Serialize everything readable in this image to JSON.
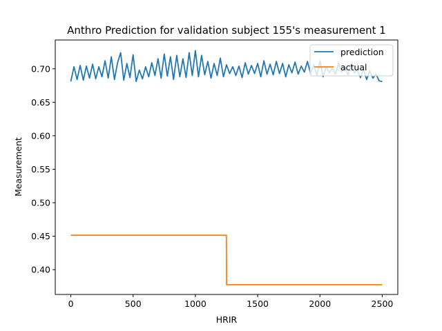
{
  "chart_data": {
    "type": "line",
    "title": "Anthro Prediction for validation subject 155's measurement 1",
    "xlabel": "HRIR",
    "ylabel": "Measurement",
    "xlim": [
      -125,
      2625
    ],
    "ylim": [
      0.363,
      0.743
    ],
    "xticks": [
      0,
      500,
      1000,
      1500,
      2000,
      2500
    ],
    "yticks": [
      0.4,
      0.45,
      0.5,
      0.55,
      0.6,
      0.65,
      0.7
    ],
    "grid": false,
    "legend_position": "top-right",
    "series": [
      {
        "name": "prediction",
        "color": "#1f77b4",
        "x": [
          0,
          25,
          50,
          75,
          100,
          125,
          150,
          175,
          200,
          225,
          250,
          275,
          300,
          325,
          350,
          375,
          400,
          425,
          450,
          475,
          500,
          525,
          550,
          575,
          600,
          625,
          650,
          675,
          700,
          725,
          750,
          775,
          800,
          825,
          850,
          875,
          900,
          925,
          950,
          975,
          1000,
          1025,
          1050,
          1075,
          1100,
          1125,
          1150,
          1175,
          1200,
          1225,
          1250,
          1275,
          1300,
          1325,
          1350,
          1375,
          1400,
          1425,
          1450,
          1475,
          1500,
          1525,
          1550,
          1575,
          1600,
          1625,
          1650,
          1675,
          1700,
          1725,
          1750,
          1775,
          1800,
          1825,
          1850,
          1875,
          1900,
          1925,
          1950,
          1975,
          2000,
          2025,
          2050,
          2075,
          2100,
          2125,
          2150,
          2175,
          2200,
          2225,
          2250,
          2275,
          2300,
          2325,
          2350,
          2375,
          2400,
          2425,
          2450,
          2475,
          2500
        ],
        "values": [
          0.681,
          0.703,
          0.684,
          0.705,
          0.683,
          0.704,
          0.686,
          0.707,
          0.685,
          0.703,
          0.688,
          0.712,
          0.686,
          0.718,
          0.684,
          0.709,
          0.724,
          0.683,
          0.708,
          0.687,
          0.721,
          0.681,
          0.698,
          0.685,
          0.703,
          0.688,
          0.709,
          0.69,
          0.715,
          0.686,
          0.722,
          0.689,
          0.718,
          0.684,
          0.72,
          0.688,
          0.715,
          0.687,
          0.724,
          0.69,
          0.727,
          0.688,
          0.72,
          0.691,
          0.711,
          0.686,
          0.708,
          0.69,
          0.716,
          0.688,
          0.706,
          0.693,
          0.703,
          0.69,
          0.704,
          0.687,
          0.709,
          0.692,
          0.705,
          0.693,
          0.708,
          0.688,
          0.712,
          0.692,
          0.707,
          0.691,
          0.711,
          0.693,
          0.708,
          0.688,
          0.706,
          0.694,
          0.71,
          0.692,
          0.704,
          0.695,
          0.711,
          0.693,
          0.706,
          0.69,
          0.712,
          0.688,
          0.703,
          0.694,
          0.701,
          0.692,
          0.709,
          0.695,
          0.703,
          0.691,
          0.707,
          0.694,
          0.698,
          0.687,
          0.699,
          0.684,
          0.697,
          0.686,
          0.692,
          0.682,
          0.681
        ]
      },
      {
        "name": "actual",
        "color": "#ff7f0e",
        "x": [
          0,
          1249,
          1250,
          2500
        ],
        "values": [
          0.4515,
          0.4515,
          0.3775,
          0.3775
        ]
      }
    ]
  }
}
